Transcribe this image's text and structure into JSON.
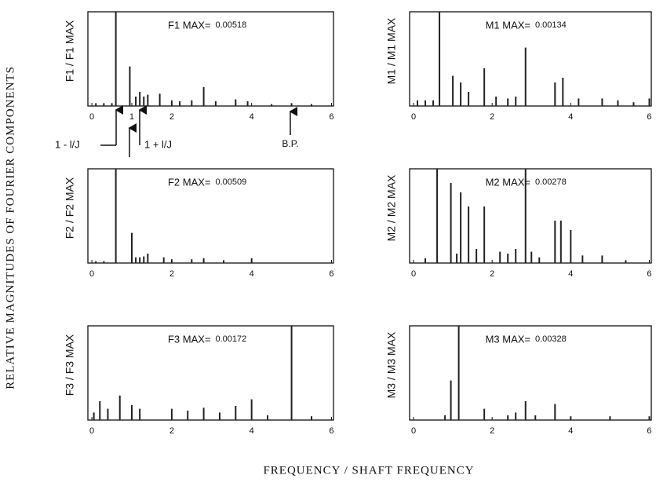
{
  "figure": {
    "ylabel": "RELATIVE MAGNITUDES OF FOURIER COMPONENTS",
    "xlabel": "FREQUENCY / SHAFT FREQUENCY"
  },
  "annotations": [
    "1 - l/J",
    "1 + l/J",
    "B.P."
  ],
  "chart_data": [
    {
      "type": "bar",
      "title": "F1 MAX=",
      "max_value": 0.00518,
      "ylabel": "F1 / F1 MAX",
      "color": "#222",
      "x": [
        0.1,
        0.3,
        0.5,
        0.6,
        0.95,
        1.1,
        1.2,
        1.3,
        1.4,
        1.7,
        2.0,
        2.2,
        2.5,
        2.8,
        3.1,
        3.6,
        3.9,
        4.5,
        5.0,
        5.5
      ],
      "values": [
        0.03,
        0.03,
        0.03,
        1.0,
        0.42,
        0.1,
        0.15,
        0.1,
        0.12,
        0.13,
        0.06,
        0.05,
        0.06,
        0.2,
        0.05,
        0.07,
        0.05,
        0.02,
        0.03,
        0.02
      ],
      "xlim": [
        -0.1,
        6.05
      ],
      "ylim": [
        0,
        1
      ],
      "xticks": [
        0,
        1,
        2,
        4,
        6
      ]
    },
    {
      "type": "bar",
      "title": "M1 MAX=",
      "max_value": 0.00134,
      "ylabel": "M1 / M1 MAX",
      "color": "#222",
      "x": [
        0.1,
        0.3,
        0.5,
        0.66,
        1.0,
        1.2,
        1.4,
        1.8,
        2.1,
        2.4,
        2.6,
        2.85,
        3.6,
        3.8,
        4.2,
        4.8,
        5.2,
        5.6,
        6.0
      ],
      "values": [
        0.06,
        0.06,
        0.06,
        1.0,
        0.32,
        0.25,
        0.15,
        0.4,
        0.1,
        0.08,
        0.1,
        0.62,
        0.25,
        0.3,
        0.08,
        0.08,
        0.06,
        0.04,
        0.08
      ],
      "xlim": [
        -0.1,
        6.05
      ],
      "ylim": [
        0,
        1
      ],
      "xticks": [
        0,
        2,
        4,
        6
      ]
    },
    {
      "type": "bar",
      "title": "F2 MAX=",
      "max_value": 0.00509,
      "ylabel": "F2 / F2 MAX",
      "color": "#222",
      "x": [
        0.1,
        0.3,
        0.6,
        1.0,
        1.1,
        1.2,
        1.3,
        1.4,
        1.8,
        2.0,
        2.5,
        2.8,
        3.3,
        4.0
      ],
      "values": [
        0.02,
        0.02,
        1.0,
        0.32,
        0.06,
        0.06,
        0.07,
        0.1,
        0.06,
        0.04,
        0.04,
        0.05,
        0.03,
        0.05
      ],
      "xlim": [
        -0.1,
        6.05
      ],
      "ylim": [
        0,
        1
      ],
      "xticks": [
        0,
        2,
        4,
        6
      ]
    },
    {
      "type": "bar",
      "title": "M2 MAX=",
      "max_value": 0.00278,
      "ylabel": "M2 / M2 MAX",
      "color": "#222",
      "x": [
        0.3,
        0.6,
        0.95,
        1.1,
        1.2,
        1.4,
        1.6,
        1.8,
        2.2,
        2.4,
        2.6,
        2.85,
        3.0,
        3.2,
        3.6,
        3.75,
        4.0,
        4.3,
        4.8,
        5.4
      ],
      "values": [
        0.05,
        1.0,
        0.85,
        0.1,
        0.75,
        0.6,
        0.15,
        0.6,
        0.12,
        0.1,
        0.15,
        1.0,
        0.12,
        0.06,
        0.45,
        0.45,
        0.35,
        0.08,
        0.08,
        0.03
      ],
      "xlim": [
        -0.1,
        6.05
      ],
      "ylim": [
        0,
        1
      ],
      "xticks": [
        0,
        2,
        4,
        6
      ]
    },
    {
      "type": "bar",
      "title": "F3 MAX=",
      "max_value": 0.00172,
      "ylabel": "F3 / F3 MAX",
      "color": "#222",
      "x": [
        0.05,
        0.2,
        0.4,
        0.7,
        1.0,
        1.2,
        2.0,
        2.4,
        2.8,
        3.2,
        3.6,
        4.0,
        4.4,
        5.0,
        5.5
      ],
      "values": [
        0.08,
        0.2,
        0.12,
        0.26,
        0.16,
        0.12,
        0.12,
        0.1,
        0.13,
        0.08,
        0.15,
        0.22,
        0.05,
        1.0,
        0.04
      ],
      "xlim": [
        -0.1,
        6.05
      ],
      "ylim": [
        0,
        1
      ],
      "xticks": [
        0,
        2,
        4,
        6
      ]
    },
    {
      "type": "bar",
      "title": "M3 MAX=",
      "max_value": 0.00328,
      "ylabel": "M3 / M3 MAX",
      "color": "#222",
      "x": [
        0.8,
        0.95,
        1.15,
        1.8,
        2.4,
        2.6,
        2.85,
        3.1,
        3.6,
        4.0,
        5.0,
        6.0
      ],
      "values": [
        0.05,
        0.42,
        1.0,
        0.12,
        0.05,
        0.08,
        0.2,
        0.05,
        0.17,
        0.04,
        0.04,
        0.04
      ],
      "xlim": [
        -0.1,
        6.05
      ],
      "ylim": [
        0,
        1
      ],
      "xticks": [
        0,
        2,
        4,
        6
      ]
    }
  ]
}
